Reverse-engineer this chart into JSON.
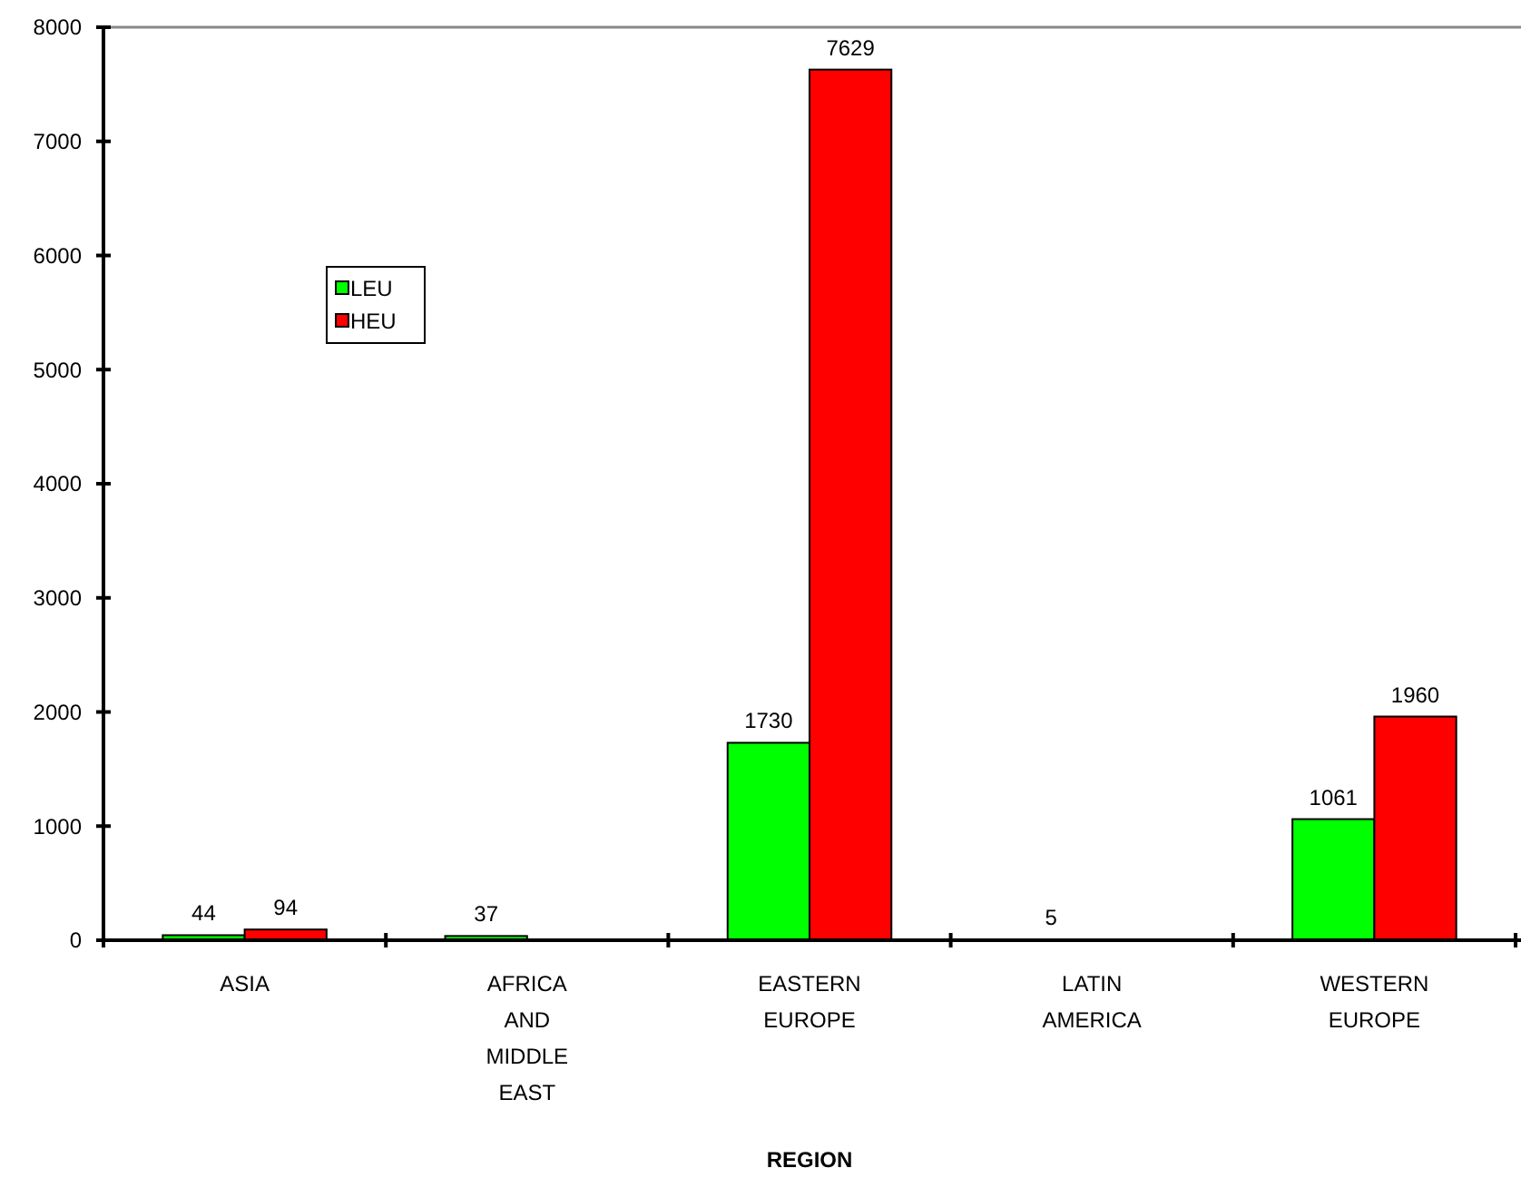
{
  "chart_data": {
    "type": "bar",
    "xlabel": "REGION",
    "categories": [
      "ASIA",
      "AFRICA AND MIDDLE EAST",
      "EASTERN EUROPE",
      "LATIN AMERICA",
      "WESTERN EUROPE"
    ],
    "series": [
      {
        "name": "LEU",
        "color": "#00ff00",
        "values": [
          44,
          37,
          1730,
          5,
          1061
        ],
        "value_labels": [
          "44",
          "37",
          "1730",
          "5",
          "1061"
        ]
      },
      {
        "name": "HEU",
        "color": "#ff0000",
        "values": [
          94,
          null,
          7629,
          null,
          1960
        ],
        "value_labels": [
          "94",
          null,
          "7629",
          null,
          "1960"
        ]
      }
    ],
    "ylim": [
      0,
      8000
    ],
    "yticks": [
      0,
      1000,
      2000,
      3000,
      4000,
      5000,
      6000,
      7000,
      8000
    ],
    "grid": false,
    "legend": "top left"
  }
}
